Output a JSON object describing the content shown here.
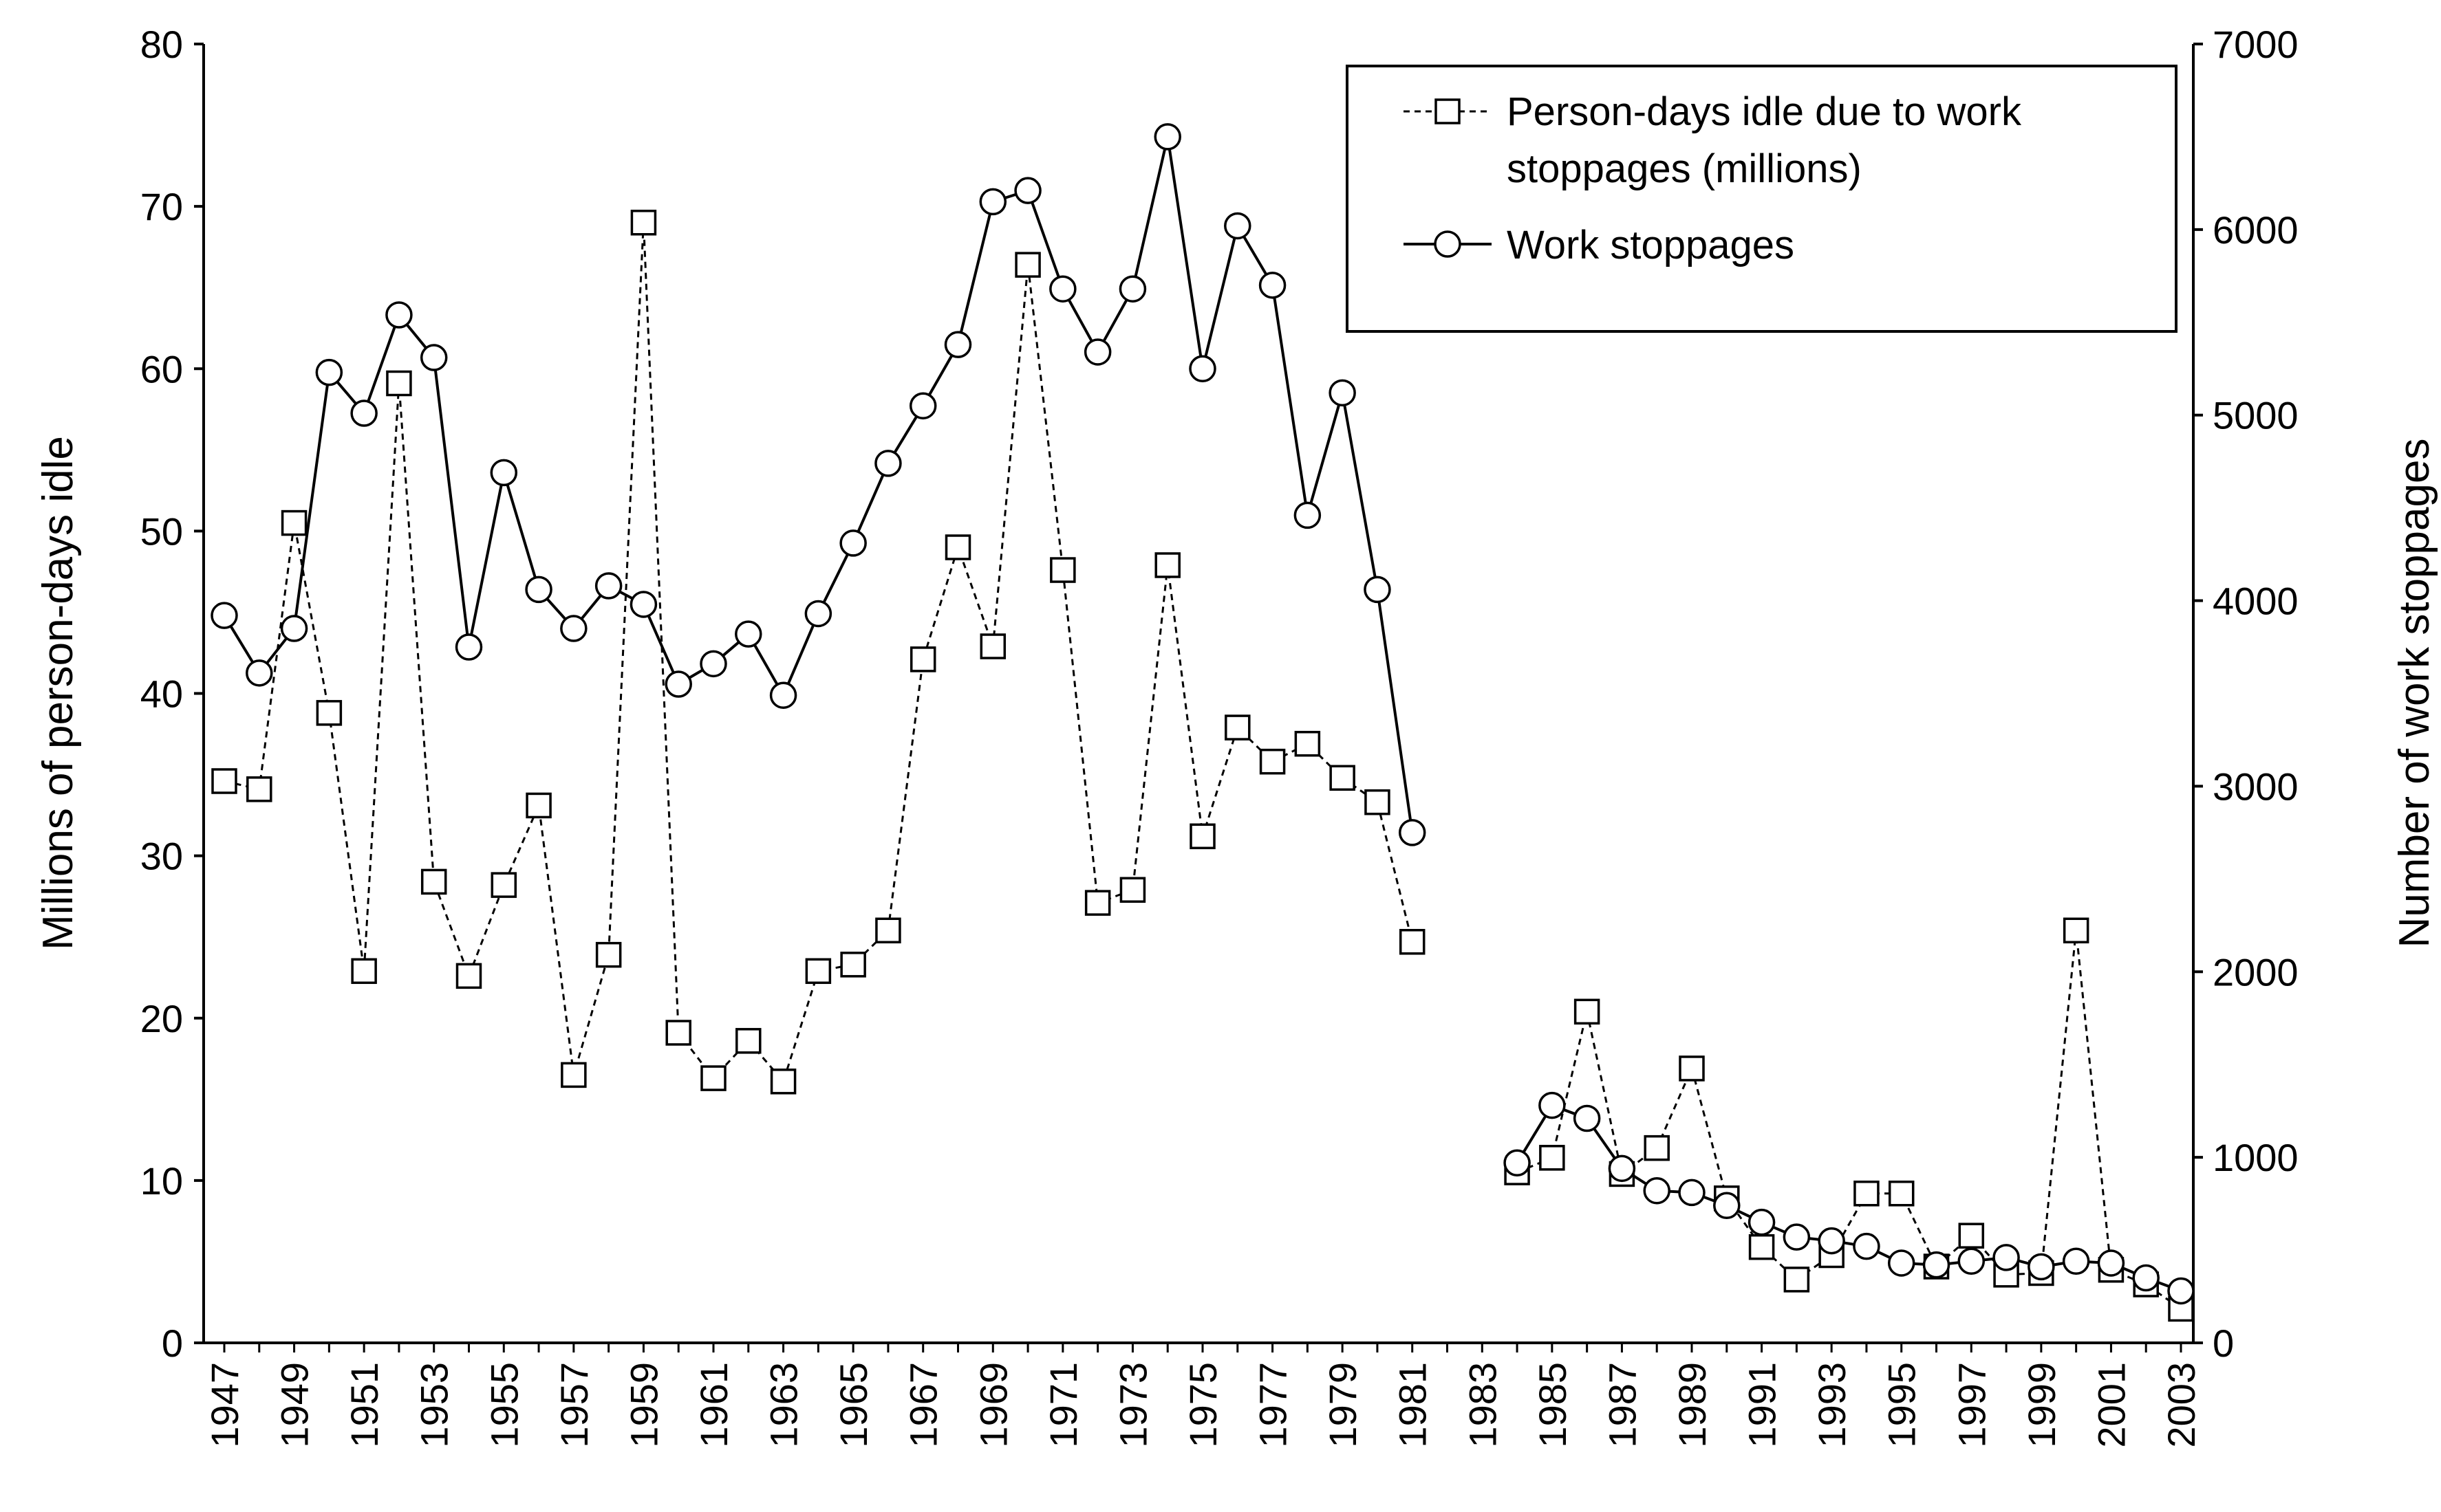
{
  "chart_data": {
    "type": "line",
    "ylabel": "Millions of person-days idle",
    "y2label": "Number of work stoppages",
    "ylim": [
      0,
      80
    ],
    "y2lim": [
      0,
      7000
    ],
    "yticks": [
      0,
      10,
      20,
      30,
      40,
      50,
      60,
      70,
      80
    ],
    "y2ticks": [
      0,
      1000,
      2000,
      3000,
      4000,
      5000,
      6000,
      7000
    ],
    "xlim": [
      1947,
      2003
    ],
    "xticks": [
      1947,
      1949,
      1951,
      1953,
      1955,
      1957,
      1959,
      1961,
      1963,
      1965,
      1967,
      1969,
      1971,
      1973,
      1975,
      1977,
      1979,
      1981,
      1983,
      1985,
      1987,
      1989,
      1991,
      1993,
      1995,
      1997,
      1999,
      2001,
      2003
    ],
    "grid": false,
    "legend_position": "top-right",
    "series": [
      {
        "name": "Person-days idle due to work stoppages (millions)",
        "axis": "left",
        "style": "dashed-square",
        "segments": [
          {
            "x": [
              1947,
              1948,
              1949,
              1950,
              1951,
              1952,
              1953,
              1954,
              1955,
              1956,
              1957,
              1958,
              1959,
              1960,
              1961,
              1962,
              1963,
              1964,
              1965,
              1966,
              1967,
              1968,
              1969,
              1970,
              1971,
              1972,
              1973,
              1974,
              1975,
              1976,
              1977,
              1978,
              1979,
              1980,
              1981
            ],
            "y": [
              34.6,
              34.1,
              50.5,
              38.8,
              22.9,
              59.1,
              28.4,
              22.6,
              28.2,
              33.1,
              16.5,
              23.9,
              69.0,
              19.1,
              16.3,
              18.6,
              16.1,
              22.9,
              23.3,
              25.4,
              42.1,
              49.0,
              42.9,
              66.4,
              47.6,
              27.1,
              27.9,
              47.9,
              31.2,
              37.9,
              35.8,
              36.9,
              34.8,
              33.3,
              24.7
            ]
          },
          {
            "x": [
              1984,
              1985,
              1986,
              1987,
              1988,
              1989,
              1990,
              1991,
              1992,
              1993,
              1994,
              1995,
              1996,
              1997,
              1998,
              1999,
              2000,
              2001,
              2002,
              2003
            ],
            "y": [
              10.5,
              11.4,
              20.4,
              10.4,
              12.0,
              16.9,
              8.9,
              5.9,
              3.9,
              5.4,
              9.2,
              9.2,
              4.7,
              6.6,
              4.2,
              4.3,
              25.4,
              4.5,
              3.6,
              2.1
            ]
          }
        ]
      },
      {
        "name": "Work stoppages",
        "axis": "right",
        "style": "solid-circle",
        "segments": [
          {
            "x": [
              1947,
              1948,
              1949,
              1950,
              1951,
              1952,
              1953,
              1954,
              1955,
              1956,
              1957,
              1958,
              1959,
              1960,
              1961,
              1962,
              1963,
              1964,
              1965,
              1966,
              1967,
              1968,
              1969,
              1970,
              1971,
              1972,
              1973,
              1974,
              1975,
              1976,
              1977,
              1978,
              1979,
              1980,
              1981
            ],
            "y": [
              3920,
              3610,
              3850,
              5230,
              5010,
              5540,
              5310,
              3750,
              4690,
              4060,
              3850,
              4080,
              3980,
              3550,
              3660,
              3820,
              3490,
              3930,
              4310,
              4740,
              5050,
              5380,
              6150,
              6210,
              5680,
              5340,
              5680,
              6500,
              5250,
              6020,
              5700,
              4460,
              5120,
              4060,
              2750
            ]
          },
          {
            "x": [
              1984,
              1985,
              1986,
              1987,
              1988,
              1989,
              1990,
              1991,
              1992,
              1993,
              1994,
              1995,
              1996,
              1997,
              1998,
              1999,
              2000,
              2001,
              2002,
              2003
            ],
            "y": [
              970,
              1280,
              1210,
              940,
              820,
              810,
              740,
              650,
              570,
              550,
              520,
              430,
              420,
              440,
              460,
              410,
              440,
              430,
              350,
              280
            ]
          }
        ]
      }
    ]
  }
}
